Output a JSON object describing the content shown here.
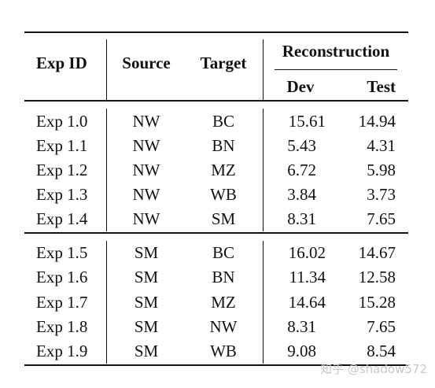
{
  "table": {
    "headers": {
      "exp_id": "Exp ID",
      "source": "Source",
      "target": "Target",
      "reconstruction": "Reconstruction",
      "dev": "Dev",
      "test": "Test"
    },
    "group1": [
      {
        "exp": "Exp 1.0",
        "source": "NW",
        "target": "BC",
        "dev": "15.61",
        "test": "14.94"
      },
      {
        "exp": "Exp 1.1",
        "source": "NW",
        "target": "BN",
        "dev": "5.43",
        "test": "4.31"
      },
      {
        "exp": "Exp 1.2",
        "source": "NW",
        "target": "MZ",
        "dev": "6.72",
        "test": "5.98"
      },
      {
        "exp": "Exp 1.3",
        "source": "NW",
        "target": "WB",
        "dev": "3.84",
        "test": "3.73"
      },
      {
        "exp": "Exp 1.4",
        "source": "NW",
        "target": "SM",
        "dev": "8.31",
        "test": "7.65"
      }
    ],
    "group2": [
      {
        "exp": "Exp 1.5",
        "source": "SM",
        "target": "BC",
        "dev": "16.02",
        "test": "14.67"
      },
      {
        "exp": "Exp 1.6",
        "source": "SM",
        "target": "BN",
        "dev": "11.34",
        "test": "12.58"
      },
      {
        "exp": "Exp 1.7",
        "source": "SM",
        "target": "MZ",
        "dev": "14.64",
        "test": "15.28"
      },
      {
        "exp": "Exp 1.8",
        "source": "SM",
        "target": "NW",
        "dev": "8.31",
        "test": "7.65"
      },
      {
        "exp": "Exp 1.9",
        "source": "SM",
        "target": "WB",
        "dev": "9.08",
        "test": "8.54"
      }
    ]
  },
  "watermark": "知乎 @shadow572"
}
